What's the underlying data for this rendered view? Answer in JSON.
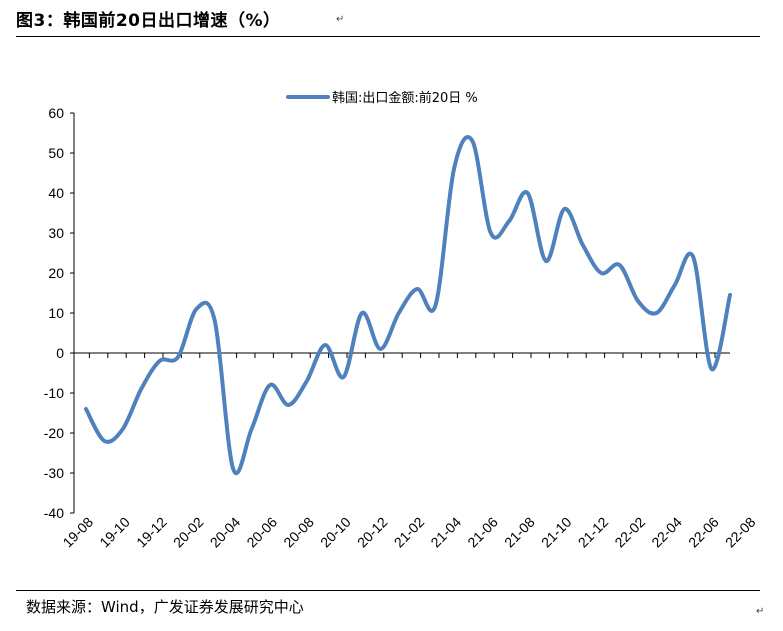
{
  "figure": {
    "title": "图3：韩国前20日出口增速（%）",
    "source": "数据来源：Wind，广发证券发展研究中心",
    "para_mark": "↵"
  },
  "chart_data": {
    "type": "line",
    "title": "",
    "xlabel": "",
    "ylabel": "",
    "ylim": [
      -40,
      60
    ],
    "yticks": [
      60,
      50,
      40,
      30,
      20,
      10,
      0,
      -10,
      -20,
      -30,
      -40
    ],
    "grid": false,
    "legend_position": "top-center",
    "x_tick_labels": [
      "19-08",
      "19-10",
      "19-12",
      "20-02",
      "20-04",
      "20-06",
      "20-08",
      "20-10",
      "20-12",
      "21-02",
      "21-04",
      "21-06",
      "21-08",
      "21-10",
      "21-12",
      "22-02",
      "22-04",
      "22-06",
      "22-08"
    ],
    "x": [
      "19-08",
      "19-09",
      "19-10",
      "19-11",
      "19-12",
      "20-01",
      "20-02",
      "20-03",
      "20-04",
      "20-05",
      "20-06",
      "20-07",
      "20-08",
      "20-09",
      "20-10",
      "20-11",
      "20-12",
      "21-01",
      "21-02",
      "21-03",
      "21-04",
      "21-05",
      "21-06",
      "21-07",
      "21-08",
      "21-09",
      "21-10",
      "21-11",
      "21-12",
      "22-01",
      "22-02",
      "22-03",
      "22-04",
      "22-05",
      "22-06",
      "22-07"
    ],
    "series": [
      {
        "name": "韩国:出口金额:前20日 %",
        "color": "#4F81BD",
        "values": [
          -14,
          -22,
          -19,
          -9,
          -2,
          -1,
          11,
          8,
          -29,
          -19,
          -8,
          -13,
          -7,
          2,
          -6,
          10,
          1,
          10,
          16,
          12,
          46,
          53,
          30,
          33,
          40,
          23,
          36,
          27,
          20,
          22,
          13,
          10,
          17,
          24,
          -4,
          14.5
        ]
      }
    ]
  }
}
